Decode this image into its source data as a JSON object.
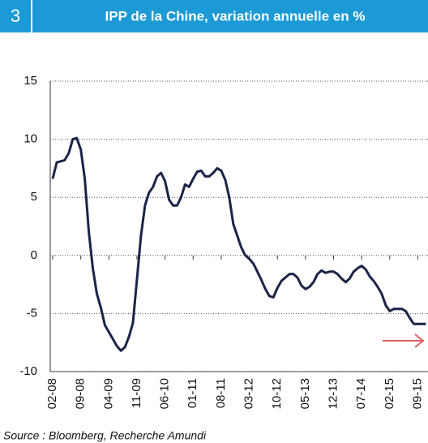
{
  "chart_data": {
    "type": "line",
    "number": "3",
    "title": "IPP de la Chine, variation annuelle en %",
    "source": "Source : Bloomberg, Recherche Amundi",
    "categories": [
      "02-08",
      null,
      null,
      null,
      null,
      null,
      null,
      "09-08",
      null,
      null,
      null,
      null,
      null,
      null,
      "04-09",
      null,
      null,
      null,
      null,
      null,
      null,
      "11-09",
      null,
      null,
      null,
      null,
      null,
      null,
      "06-10",
      null,
      null,
      null,
      null,
      null,
      null,
      "01-11",
      null,
      null,
      null,
      null,
      null,
      null,
      "08-11",
      null,
      null,
      null,
      null,
      null,
      null,
      "03-12",
      null,
      null,
      null,
      null,
      null,
      null,
      "10-12",
      null,
      null,
      null,
      null,
      null,
      null,
      "05-13",
      null,
      null,
      null,
      null,
      null,
      null,
      "12-13",
      null,
      null,
      null,
      null,
      null,
      null,
      "07-14",
      null,
      null,
      null,
      null,
      null,
      null,
      "02-15",
      null,
      null,
      null,
      null,
      null,
      null,
      "09-15",
      null,
      null
    ],
    "series": [
      {
        "name": "IPP",
        "color": "#1b2447",
        "values": [
          6.6,
          8.0,
          8.1,
          8.2,
          8.8,
          10.0,
          10.1,
          9.1,
          6.6,
          2.0,
          -1.1,
          -3.3,
          -4.5,
          -6.0,
          -6.6,
          -7.2,
          -7.8,
          -8.2,
          -7.9,
          -7.0,
          -5.8,
          -2.1,
          1.7,
          4.3,
          5.4,
          5.9,
          6.8,
          7.1,
          6.4,
          4.8,
          4.3,
          4.3,
          5.0,
          6.1,
          5.9,
          6.6,
          7.2,
          7.3,
          6.8,
          6.8,
          7.1,
          7.5,
          7.3,
          6.5,
          5.0,
          2.7,
          1.7,
          0.7,
          0.0,
          -0.3,
          -0.7,
          -1.4,
          -2.1,
          -2.9,
          -3.5,
          -3.6,
          -2.8,
          -2.2,
          -1.9,
          -1.6,
          -1.6,
          -1.9,
          -2.6,
          -2.9,
          -2.7,
          -2.3,
          -1.6,
          -1.3,
          -1.5,
          -1.4,
          -1.4,
          -1.6,
          -2.0,
          -2.3,
          -2.0,
          -1.4,
          -1.1,
          -0.9,
          -1.2,
          -1.8,
          -2.2,
          -2.7,
          -3.3,
          -4.3,
          -4.8,
          -4.6,
          -4.6,
          -4.6,
          -4.8,
          -5.4,
          -5.9,
          -5.9,
          -5.9,
          -5.9
        ]
      }
    ],
    "ylim": [
      -10,
      15
    ],
    "yticks": [
      -10,
      -5,
      0,
      5,
      10,
      15
    ],
    "grid": true
  }
}
